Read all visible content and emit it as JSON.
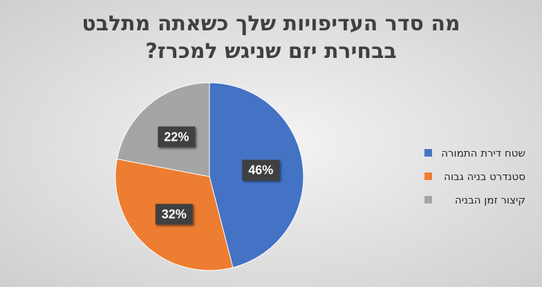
{
  "chart_data": {
    "type": "pie",
    "title": [
      "מה סדר העדיפויות שלך כשאתה מתלבט",
      "בבחירת יזם שניגש למכרז?"
    ],
    "categories": [
      "שטח דירת התמורה",
      "סטנדרט בניה גבוה",
      "קיצור זמן הבניה"
    ],
    "values": [
      46,
      32,
      22
    ],
    "value_labels": [
      "46%",
      "32%",
      "22%"
    ],
    "colors": [
      "#4472c4",
      "#ed7d31",
      "#a5a5a5"
    ],
    "legend": "right"
  }
}
